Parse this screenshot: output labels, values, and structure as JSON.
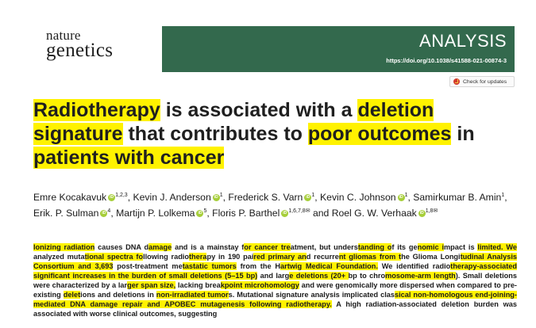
{
  "journal": {
    "line1": "nature",
    "line2": "genetics",
    "section": "ANALYSIS",
    "doi": "https://doi.org/10.1038/s41588-021-00874-3",
    "check_updates": "Check for updates",
    "header_color": "#33694d",
    "highlight_color": "#fff200"
  },
  "title_segments": [
    {
      "text": "Radiotherapy",
      "hl": true
    },
    {
      "text": " is associated with a ",
      "hl": false
    },
    {
      "text": "deletion signature",
      "hl": true
    },
    {
      "text": " that contributes to ",
      "hl": false
    },
    {
      "text": "poor outcomes",
      "hl": true
    },
    {
      "text": " in ",
      "hl": false
    },
    {
      "text": "patients with cancer",
      "hl": true
    }
  ],
  "authors": [
    {
      "name": "Emre Kocakavuk",
      "orcid": true,
      "sup": "1,2,3"
    },
    {
      "name": "Kevin J. Anderson",
      "orcid": true,
      "sup": "1"
    },
    {
      "name": "Frederick S. Varn",
      "orcid": true,
      "sup": "1"
    },
    {
      "name": "Kevin C. Johnson",
      "orcid": true,
      "sup": "1"
    },
    {
      "name": "Samirkumar B. Amin",
      "orcid": false,
      "sup": "1"
    },
    {
      "name": "Erik. P. Sulman",
      "orcid": true,
      "sup": "4"
    },
    {
      "name": "Martijn P. Lolkema",
      "orcid": true,
      "sup": "5"
    },
    {
      "name": "Floris P. Barthel",
      "orcid": true,
      "sup": "1,6,7,8",
      "mail": true
    },
    {
      "name": "Roel G. W. Verhaak",
      "orcid": true,
      "sup": "1,8",
      "mail": true
    }
  ],
  "author_sep": ", ",
  "author_and": " and ",
  "abstract_segments": [
    {
      "text": "Ionizing radiation",
      "hl": true
    },
    {
      "text": " causes DNA d",
      "hl": false
    },
    {
      "text": "amage",
      "hl": true
    },
    {
      "text": " and is a mainstay f",
      "hl": false
    },
    {
      "text": "or cancer tre",
      "hl": true
    },
    {
      "text": "atment, but unders",
      "hl": false
    },
    {
      "text": "tanding o",
      "hl": true
    },
    {
      "text": "f its ge",
      "hl": false
    },
    {
      "text": "nomic i",
      "hl": true
    },
    {
      "text": "mpact is ",
      "hl": false
    },
    {
      "text": "limited. We",
      "hl": true
    },
    {
      "text": " analyzed muta",
      "hl": false
    },
    {
      "text": "tional spectra fo",
      "hl": true
    },
    {
      "text": "llowing radio",
      "hl": false
    },
    {
      "text": "thera",
      "hl": true
    },
    {
      "text": "py in 190 pai",
      "hl": false
    },
    {
      "text": "red primary an",
      "hl": true
    },
    {
      "text": "d recurre",
      "hl": false
    },
    {
      "text": "nt gliomas from t",
      "hl": true
    },
    {
      "text": "he Glioma Longi",
      "hl": false
    },
    {
      "text": "tudinal Analysis Consortium and 3,693",
      "hl": true
    },
    {
      "text": " post-treatment me",
      "hl": false
    },
    {
      "text": "tastatic tumors",
      "hl": true
    },
    {
      "text": " from the H",
      "hl": false
    },
    {
      "text": "artwig Medical Foundation.",
      "hl": true
    },
    {
      "text": " We identified radio",
      "hl": false
    },
    {
      "text": "therapy-associated significant increases in the burden of small deletions (5–15 bp)",
      "hl": true
    },
    {
      "text": " and larg",
      "hl": false
    },
    {
      "text": "e deletions (20+ ",
      "hl": true
    },
    {
      "text": "bp to chro",
      "hl": false
    },
    {
      "text": "mosome-arm length",
      "hl": true
    },
    {
      "text": "). Small deletions were characterized by a lar",
      "hl": false
    },
    {
      "text": "ger span size,",
      "hl": true
    },
    {
      "text": " lacking brea",
      "hl": false
    },
    {
      "text": "kpoint microhomology",
      "hl": true
    },
    {
      "text": " and were genomically more dispersed when compared to pre-existing ",
      "hl": false
    },
    {
      "text": "delet",
      "hl": true
    },
    {
      "text": "ions and deletions in ",
      "hl": false
    },
    {
      "text": "non-irradiated tumor",
      "hl": true
    },
    {
      "text": "s. Mutational signature analysis implicated clas",
      "hl": false
    },
    {
      "text": "sical non-homologous end-joining-mediated DNA damage repair and APOBEC mutagenesis following radiotherapy.",
      "hl": true
    },
    {
      "text": " A high radiation-associated deletion burden was associated with worse clinical outcomes, suggesting",
      "hl": false
    }
  ]
}
